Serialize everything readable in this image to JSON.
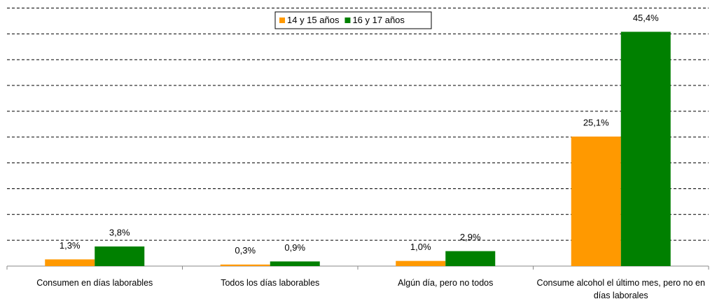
{
  "chart_data": {
    "type": "bar",
    "categories": [
      "Consumen en días laborables",
      "Todos los días laborables",
      "Algún día, pero no todos",
      "Consume alcohol el último mes, pero no en días laborales"
    ],
    "series": [
      {
        "name": "14 y 15 años",
        "color": "#ff9900",
        "values": [
          1.3,
          0.3,
          1.0,
          25.1
        ],
        "value_labels": [
          "1,3%",
          "0,3%",
          "1,0%",
          "25,1%"
        ]
      },
      {
        "name": "16 y 17 años",
        "color": "#008000",
        "values": [
          3.8,
          0.9,
          2.9,
          45.4
        ],
        "value_labels": [
          "3,8%",
          "0,9%",
          "2,9%",
          "45,4%"
        ]
      }
    ],
    "ylim": [
      0,
      50
    ],
    "yticks": [
      0,
      5,
      10,
      15,
      20,
      25,
      30,
      35,
      40,
      45,
      50
    ],
    "grid": true,
    "legend": "top"
  }
}
